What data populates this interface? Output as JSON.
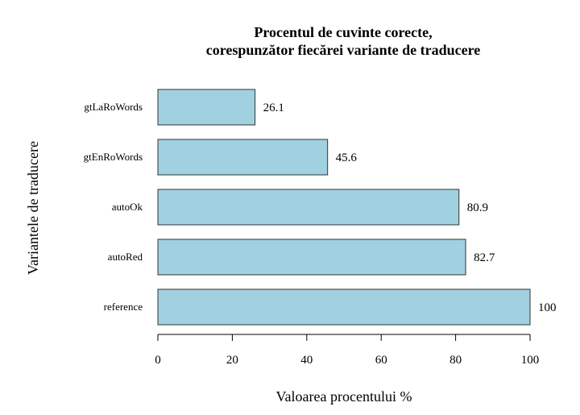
{
  "chart_data": {
    "type": "bar",
    "orientation": "horizontal",
    "title_lines": [
      "Procentul de cuvinte corecte,",
      "corespunzător fiecărei variante de traducere"
    ],
    "xlabel": "Valoarea procentului %",
    "ylabel": "Variantele de traducere",
    "categories": [
      "gtLaRoWords",
      "gtEnRoWords",
      "autoOk",
      "autoRed",
      "reference"
    ],
    "values": [
      26.1,
      45.6,
      80.9,
      82.7,
      100
    ],
    "value_labels": [
      "26.1",
      "45.6",
      "80.9",
      "82.7",
      "100"
    ],
    "xlim": [
      0,
      100
    ],
    "xticks": [
      0,
      20,
      40,
      60,
      80,
      100
    ],
    "xtick_labels": [
      "0",
      "20",
      "40",
      "60",
      "80",
      "100"
    ],
    "grid": false,
    "legend": "none",
    "bar_color": "#a1d0e0",
    "bar_edge_color": "#333333"
  }
}
